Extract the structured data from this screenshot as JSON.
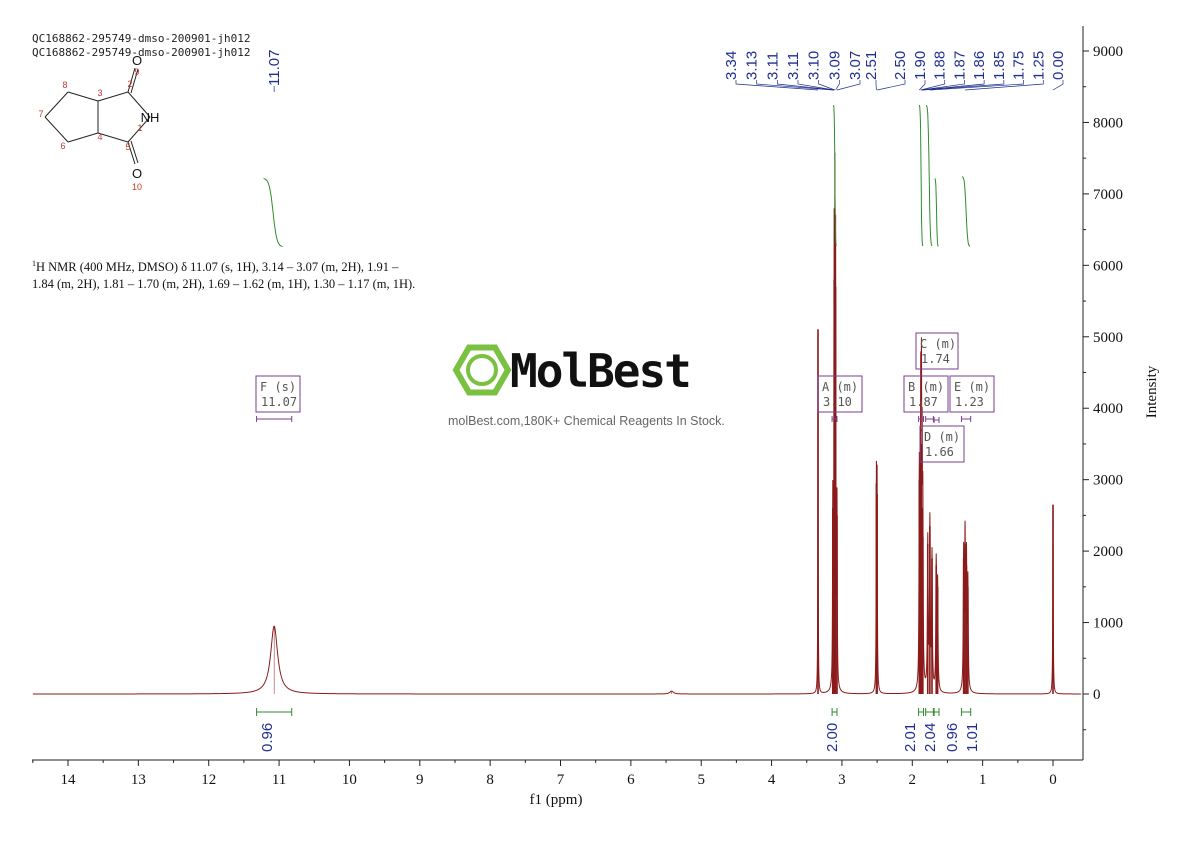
{
  "header": {
    "line1": "QC168862-295749-dmso-200901-jh012",
    "line2": "QC168862-295749-dmso-200901-jh012"
  },
  "molecule": {
    "atoms": [
      {
        "id": "O9",
        "symbol": "O",
        "index": "9"
      },
      {
        "id": "C8",
        "symbol": "",
        "index": "8"
      },
      {
        "id": "C3",
        "symbol": "",
        "index": "3"
      },
      {
        "id": "C2",
        "symbol": "",
        "index": "2"
      },
      {
        "id": "C7",
        "symbol": "",
        "index": "7"
      },
      {
        "id": "N1",
        "symbol": "NH",
        "index": "1"
      },
      {
        "id": "C4",
        "symbol": "",
        "index": "4"
      },
      {
        "id": "C6",
        "symbol": "",
        "index": "6"
      },
      {
        "id": "C5",
        "symbol": "",
        "index": "5"
      },
      {
        "id": "O10",
        "symbol": "O",
        "index": "10"
      }
    ]
  },
  "nmr_description": {
    "nucleus_sup": "1",
    "text": "H NMR (400 MHz, DMSO) δ 11.07 (s, 1H), 3.14 – 3.07 (m, 2H), 1.91 – 1.84 (m, 2H), 1.81 – 1.70 (m, 2H), 1.69 – 1.62 (m, 1H), 1.30 – 1.17 (m, 1H)."
  },
  "watermark": {
    "brand": "MolBest",
    "tagline": "molBest.com,180K+ Chemical Reagents In Stock."
  },
  "colors": {
    "spectrum": "#8b1a1a",
    "peak_label": "#1f2f8f",
    "integral": "#2e8b2e",
    "multiplet_box": "#7a3f8f",
    "axis": "#222222",
    "logo_green": "#7ac142"
  },
  "chart_data": {
    "type": "line",
    "title": "",
    "xlabel": "f1 (ppm)",
    "ylabel": "Intensity",
    "xlim": [
      14.5,
      -0.4
    ],
    "ylim": [
      -1000,
      9300
    ],
    "x_reversed": true,
    "x_ticks": [
      14,
      13,
      12,
      11,
      10,
      9,
      8,
      7,
      6,
      5,
      4,
      3,
      2,
      1,
      0
    ],
    "y_ticks": [
      0,
      1000,
      2000,
      3000,
      4000,
      5000,
      6000,
      7000,
      8000,
      9000
    ],
    "peaks": [
      {
        "ppm": 11.07,
        "height": 950,
        "width": 0.06
      },
      {
        "ppm": 3.34,
        "height": 5100,
        "width": 0.003
      },
      {
        "ppm": 3.13,
        "height": 2600,
        "width": 0.004
      },
      {
        "ppm": 3.11,
        "height": 5800,
        "width": 0.004
      },
      {
        "ppm": 3.1,
        "height": 5900,
        "width": 0.004
      },
      {
        "ppm": 3.09,
        "height": 5700,
        "width": 0.004
      },
      {
        "ppm": 3.07,
        "height": 2500,
        "width": 0.004
      },
      {
        "ppm": 2.51,
        "height": 2950,
        "width": 0.004
      },
      {
        "ppm": 2.5,
        "height": 2800,
        "width": 0.004
      },
      {
        "ppm": 1.9,
        "height": 3000,
        "width": 0.005
      },
      {
        "ppm": 1.88,
        "height": 3700,
        "width": 0.005
      },
      {
        "ppm": 1.87,
        "height": 3500,
        "width": 0.005
      },
      {
        "ppm": 1.86,
        "height": 2600,
        "width": 0.005
      },
      {
        "ppm": 1.85,
        "height": 2200,
        "width": 0.005
      },
      {
        "ppm": 1.78,
        "height": 2100,
        "width": 0.006
      },
      {
        "ppm": 1.75,
        "height": 2350,
        "width": 0.006
      },
      {
        "ppm": 1.72,
        "height": 1900,
        "width": 0.006
      },
      {
        "ppm": 1.66,
        "height": 1800,
        "width": 0.006
      },
      {
        "ppm": 1.64,
        "height": 1500,
        "width": 0.006
      },
      {
        "ppm": 1.27,
        "height": 1900,
        "width": 0.006
      },
      {
        "ppm": 1.25,
        "height": 2100,
        "width": 0.006
      },
      {
        "ppm": 1.23,
        "height": 1800,
        "width": 0.006
      },
      {
        "ppm": 1.21,
        "height": 1500,
        "width": 0.006
      },
      {
        "ppm": 0.0,
        "height": 2650,
        "width": 0.004
      },
      {
        "ppm": 5.42,
        "height": 40,
        "width": 0.03
      }
    ],
    "peak_labels": [
      "3.34",
      "3.13",
      "3.11",
      "3.11",
      "3.10",
      "3.09",
      "3.07",
      "2.51",
      "2.50",
      "1.90",
      "1.88",
      "1.87",
      "1.86",
      "1.85",
      "1.75",
      "1.25",
      "0.00"
    ],
    "peak_label_11": "11.07",
    "multiplets": [
      {
        "id": "F",
        "type": "s",
        "shift": "11.07",
        "range": [
          11.32,
          10.82
        ]
      },
      {
        "id": "A",
        "type": "m",
        "shift": "3.10",
        "range": [
          3.14,
          3.07
        ]
      },
      {
        "id": "B",
        "type": "m",
        "shift": "1.87",
        "range": [
          1.91,
          1.84
        ]
      },
      {
        "id": "C",
        "type": "m",
        "shift": "1.74",
        "range": [
          1.81,
          1.7
        ]
      },
      {
        "id": "D",
        "type": "m",
        "shift": "1.66",
        "range": [
          1.69,
          1.62
        ]
      },
      {
        "id": "E",
        "type": "m",
        "shift": "1.23",
        "range": [
          1.3,
          1.17
        ]
      }
    ],
    "integrals": [
      {
        "value": "0.96",
        "range": [
          11.32,
          10.82
        ]
      },
      {
        "value": "2.00",
        "range": [
          3.14,
          3.07
        ]
      },
      {
        "value": "2.01",
        "range": [
          1.91,
          1.84
        ]
      },
      {
        "value": "2.04",
        "range": [
          1.81,
          1.7
        ]
      },
      {
        "value": "0.96",
        "range": [
          1.69,
          1.62
        ]
      },
      {
        "value": "1.01",
        "range": [
          1.3,
          1.17
        ]
      }
    ]
  }
}
